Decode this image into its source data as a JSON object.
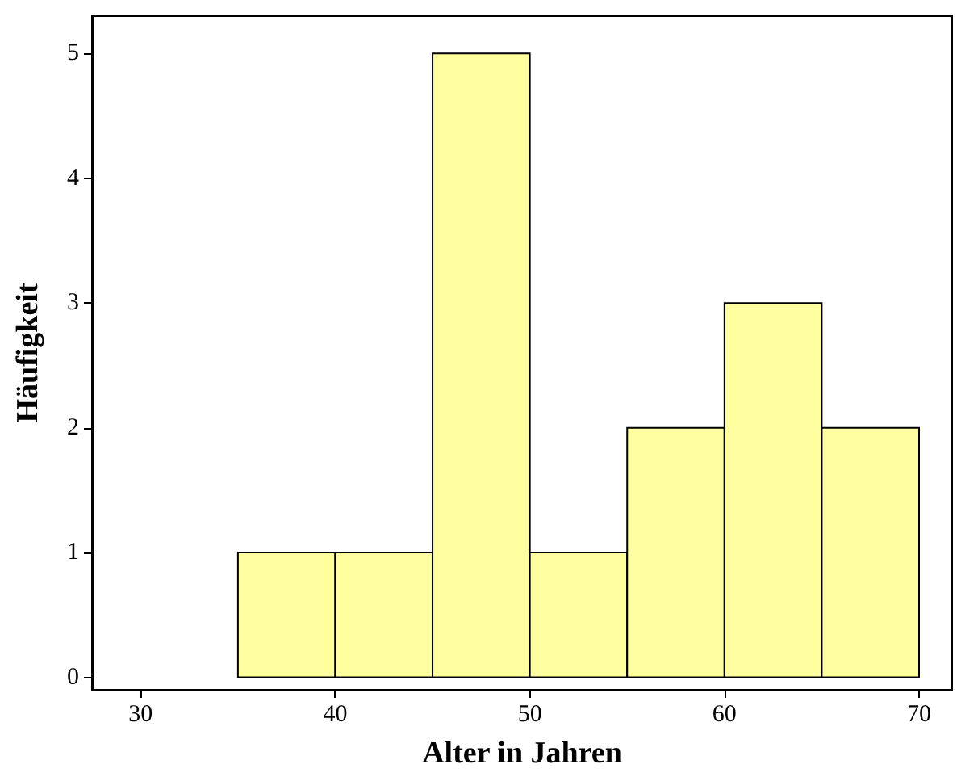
{
  "chart_data": {
    "type": "histogram",
    "xlabel": "Alter in Jahren",
    "ylabel": "Häufigkeit",
    "bins": [
      35,
      40,
      45,
      50,
      55,
      60,
      65,
      70
    ],
    "values": [
      1,
      1,
      5,
      1,
      2,
      3,
      2
    ],
    "color": "#ffffa0",
    "xlim": [
      27.5,
      71.7
    ],
    "xticks": [
      30,
      40,
      50,
      60,
      70
    ],
    "ylim": [
      -0.1,
      5.3
    ],
    "yticks": [
      0,
      1,
      2,
      3,
      4,
      5
    ],
    "grid": false
  }
}
